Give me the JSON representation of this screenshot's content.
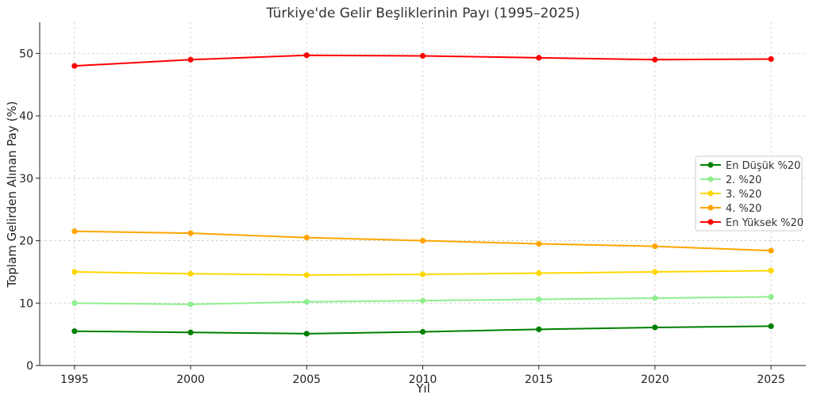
{
  "chart_data": {
    "type": "line",
    "title": "Türkiye'de Gelir Beşliklerinin Payı (1995–2025)",
    "xlabel": "Yıl",
    "ylabel": "Toplam Gelirden Alınan Pay (%)",
    "x": [
      1995,
      2000,
      2005,
      2010,
      2015,
      2020,
      2025
    ],
    "xlim": [
      1993.5,
      2026.5
    ],
    "ylim": [
      0,
      55
    ],
    "xticks": [
      1995,
      2000,
      2005,
      2010,
      2015,
      2020,
      2025
    ],
    "yticks": [
      0,
      10,
      20,
      30,
      40,
      50
    ],
    "grid": true,
    "legend_position": "center-right",
    "series": [
      {
        "name": "En Düşük %20",
        "color": "#008000",
        "values": [
          5.5,
          5.3,
          5.1,
          5.4,
          5.8,
          6.1,
          6.3
        ]
      },
      {
        "name": "2. %20",
        "color": "#90ee90",
        "values": [
          10.0,
          9.8,
          10.2,
          10.4,
          10.6,
          10.8,
          11.0
        ]
      },
      {
        "name": "3. %20",
        "color": "#ffd700",
        "values": [
          15.0,
          14.7,
          14.5,
          14.6,
          14.8,
          15.0,
          15.2
        ]
      },
      {
        "name": "4. %20",
        "color": "#ffa500",
        "values": [
          21.5,
          21.2,
          20.5,
          20.0,
          19.5,
          19.1,
          18.4
        ]
      },
      {
        "name": "En Yüksek %20",
        "color": "#ff0000",
        "values": [
          48.0,
          49.0,
          49.7,
          49.6,
          49.3,
          49.0,
          49.1
        ]
      }
    ]
  }
}
